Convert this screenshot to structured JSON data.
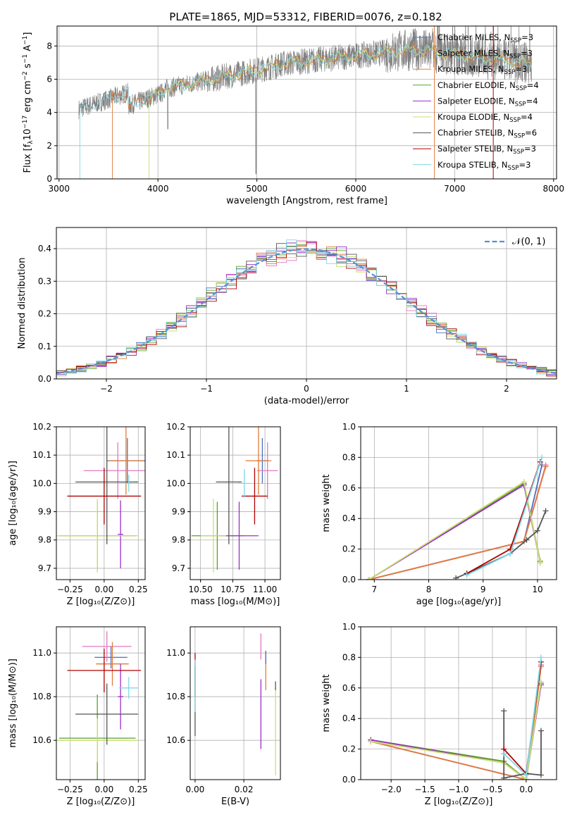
{
  "title": "PLATE=1865, MJD=53312, FIBERID=0076, z=0.182",
  "colors": {
    "Chabrier MILES": "#4f6fbf",
    "Salpeter MILES": "#e377c2",
    "Kroupa MILES": "#e07b39",
    "Chabrier ELODIE": "#5aa02c",
    "Salpeter ELODIE": "#9b30c8",
    "Kroupa ELODIE": "#c8e070",
    "Chabrier STELIB": "#555555",
    "Salpeter STELIB": "#b00000",
    "Kroupa STELIB": "#7fd8e8",
    "grid": "#b0b0b0",
    "gauss": "#5b8ed6"
  },
  "charts": {
    "spectrum": {
      "type": "line",
      "xlabel": "wavelength [Angstrom, rest frame]",
      "ylabel_main": "Flux [f",
      "ylabel_sub1": "λ",
      "ylabel_mid": "10",
      "ylabel_sup1": "−17",
      "ylabel_mid2": " erg cm",
      "ylabel_sup2": "−2",
      "ylabel_mid3": " s",
      "ylabel_sup3": "−1",
      "ylabel_mid4": " A",
      "ylabel_sup4": "−1",
      "ylabel_end": "]",
      "xlim": [
        2980,
        8030
      ],
      "ylim": [
        0,
        9.2
      ],
      "xticks": [
        "3000",
        "4000",
        "5000",
        "6000",
        "7000",
        "8000"
      ],
      "xtick_values": [
        3000,
        4000,
        5000,
        6000,
        7000,
        8000
      ],
      "yticks": [
        "0",
        "2",
        "4",
        "6",
        "8"
      ],
      "ytick_values": [
        0,
        2,
        4,
        6,
        8
      ],
      "legend": [
        {
          "name": "Chabrier MILES, N",
          "sub": "SSP",
          "suffix": "=3"
        },
        {
          "name": "Salpeter MILES, N",
          "sub": "SSP",
          "suffix": "=3"
        },
        {
          "name": "Kroupa MILES, N",
          "sub": "SSP",
          "suffix": "=3"
        },
        {
          "name": "Chabrier ELODIE, N",
          "sub": "SSP",
          "suffix": "=4"
        },
        {
          "name": "Salpeter ELODIE, N",
          "sub": "SSP",
          "suffix": "=4"
        },
        {
          "name": "Kroupa ELODIE, N",
          "sub": "SSP",
          "suffix": "=4"
        },
        {
          "name": "Chabrier STELIB, N",
          "sub": "SSP",
          "suffix": "=6"
        },
        {
          "name": "Salpeter STELIB, N",
          "sub": "SSP",
          "suffix": "=3"
        },
        {
          "name": "Kroupa STELIB, N",
          "sub": "SSP",
          "suffix": "=3"
        }
      ],
      "model_starts": [
        {
          "model": "Kroupa STELIB",
          "x": 3210
        },
        {
          "model": "Kroupa MILES",
          "x": 3540
        },
        {
          "model": "Kroupa ELODIE",
          "x": 3910
        }
      ],
      "cutoffs": [
        6795,
        7390
      ]
    },
    "residuals": {
      "type": "line",
      "xlabel": "(data-model)/error",
      "ylabel": "Normed distribution",
      "xlim": [
        -2.5,
        2.5
      ],
      "ylim": [
        0,
        0.465
      ],
      "xticks": [
        "−2",
        "−1",
        "0",
        "1",
        "2"
      ],
      "xtick_values": [
        -2,
        -1,
        0,
        1,
        2
      ],
      "yticks": [
        "0.0",
        "0.1",
        "0.2",
        "0.3",
        "0.4"
      ],
      "ytick_values": [
        0,
        0.1,
        0.2,
        0.3,
        0.4
      ],
      "legend": "𝒩(0, 1)"
    },
    "z_age": {
      "type": "scatter",
      "xlabel": "Z [log₁₀(Z/Z⊙)]",
      "ylabel": "age  [log₁₀(age/yr)]",
      "xlim": [
        -0.35,
        0.3
      ],
      "ylim": [
        9.66,
        10.2
      ],
      "xticks": [
        "−0.25",
        "0.00",
        "0.25"
      ],
      "xtick_values": [
        -0.25,
        0,
        0.25
      ],
      "yticks": [
        "9.7",
        "9.8",
        "9.9",
        "10.0",
        "10.1",
        "10.2"
      ],
      "ytick_values": [
        9.7,
        9.8,
        9.9,
        10.0,
        10.1,
        10.2
      ],
      "points": [
        {
          "model": "Chabrier MILES",
          "x": 0.17,
          "xerr": 0.15,
          "y": 10.08,
          "yerr": 0.08
        },
        {
          "model": "Salpeter MILES",
          "x": 0.1,
          "xerr": 0.25,
          "y": 10.045,
          "yerr": 0.1
        },
        {
          "model": "Kroupa MILES",
          "x": 0.16,
          "xerr": 0.13,
          "y": 10.08,
          "yerr": 0.12
        },
        {
          "model": "Chabrier ELODIE",
          "x": -0.05,
          "xerr": 0.28,
          "y": 9.815,
          "yerr": 0.12
        },
        {
          "model": "Salpeter ELODIE",
          "x": 0.12,
          "xerr": 0.02,
          "y": 9.82,
          "yerr": 0.12
        },
        {
          "model": "Kroupa ELODIE",
          "x": -0.05,
          "xerr": 0.3,
          "y": 9.815,
          "yerr": 0.13
        },
        {
          "model": "Chabrier STELIB",
          "x": 0.02,
          "xerr": 0.23,
          "y": 10.005,
          "yerr": 0.22
        },
        {
          "model": "Salpeter STELIB",
          "x": 0.0,
          "xerr": 0.27,
          "y": 9.955,
          "yerr": 0.1
        },
        {
          "model": "Kroupa STELIB",
          "x": 0.18,
          "xerr": 0.07,
          "y": 10.0,
          "yerr": 0.03
        }
      ]
    },
    "mass_age": {
      "type": "scatter",
      "xlabel": "mass [log₁₀(M/M⊙)]",
      "ylabel": "",
      "xlim": [
        10.42,
        11.12
      ],
      "ylim": [
        9.66,
        10.2
      ],
      "xticks": [
        "10.50",
        "10.75",
        "11.00"
      ],
      "xtick_values": [
        10.5,
        10.75,
        11.0
      ],
      "yticks": [
        "9.7",
        "9.8",
        "9.9",
        "10.0",
        "10.1",
        "10.2"
      ],
      "ytick_values": [
        9.7,
        9.8,
        9.9,
        10.0,
        10.1,
        10.2
      ],
      "points": [
        {
          "model": "Chabrier MILES",
          "x": 10.98,
          "xerr": 0.05,
          "y": 10.08,
          "yerr": 0.08
        },
        {
          "model": "Salpeter MILES",
          "x": 11.02,
          "xerr": 0.08,
          "y": 10.045,
          "yerr": 0.1
        },
        {
          "model": "Kroupa MILES",
          "x": 10.95,
          "xerr": 0.1,
          "y": 10.08,
          "yerr": 0.12
        },
        {
          "model": "Chabrier ELODIE",
          "x": 10.63,
          "xerr": 0.2,
          "y": 9.815,
          "yerr": 0.12
        },
        {
          "model": "Salpeter ELODIE",
          "x": 10.8,
          "xerr": 0.15,
          "y": 9.815,
          "yerr": 0.12
        },
        {
          "model": "Kroupa ELODIE",
          "x": 10.6,
          "xerr": 0.1,
          "y": 9.815,
          "yerr": 0.13
        },
        {
          "model": "Chabrier STELIB",
          "x": 10.72,
          "xerr": 0.1,
          "y": 10.005,
          "yerr": 0.22
        },
        {
          "model": "Salpeter STELIB",
          "x": 10.92,
          "xerr": 0.1,
          "y": 9.955,
          "yerr": 0.1
        },
        {
          "model": "Kroupa STELIB",
          "x": 10.84,
          "xerr": 0.05,
          "y": 10.0,
          "yerr": 0.05
        }
      ]
    },
    "age_weight": {
      "type": "line",
      "xlabel": "age  [log₁₀(age/yr)]",
      "ylabel": "mass weight",
      "xlim": [
        6.75,
        10.35
      ],
      "ylim": [
        0,
        1.0
      ],
      "xticks": [
        "7",
        "8",
        "9",
        "10"
      ],
      "xtick_values": [
        7,
        8,
        9,
        10
      ],
      "yticks": [
        "0.0",
        "0.2",
        "0.4",
        "0.6",
        "0.8",
        "1.0"
      ],
      "ytick_values": [
        0,
        0.2,
        0.4,
        0.6,
        0.8,
        1.0
      ],
      "series": [
        {
          "model": "Chabrier MILES",
          "x": [
            6.9,
            9.75,
            10.08
          ],
          "y": [
            0.0,
            0.25,
            0.75
          ]
        },
        {
          "model": "Salpeter MILES",
          "x": [
            6.9,
            9.75,
            10.15
          ],
          "y": [
            0.0,
            0.25,
            0.75
          ]
        },
        {
          "model": "Kroupa MILES",
          "x": [
            6.9,
            9.75,
            10.15
          ],
          "y": [
            0.0,
            0.25,
            0.74
          ]
        },
        {
          "model": "Chabrier ELODIE",
          "x": [
            6.9,
            9.75,
            10.05
          ],
          "y": [
            0.0,
            0.63,
            0.12
          ]
        },
        {
          "model": "Salpeter ELODIE",
          "x": [
            6.9,
            9.75,
            10.05
          ],
          "y": [
            0.0,
            0.62,
            0.11
          ]
        },
        {
          "model": "Kroupa ELODIE",
          "x": [
            6.9,
            9.75,
            10.05
          ],
          "y": [
            0.0,
            0.64,
            0.11
          ]
        },
        {
          "model": "Chabrier STELIB",
          "x": [
            8.5,
            8.7,
            9.5,
            9.8,
            10.0,
            10.15
          ],
          "y": [
            0.01,
            0.04,
            0.17,
            0.26,
            0.32,
            0.45
          ]
        },
        {
          "model": "Salpeter STELIB",
          "x": [
            8.7,
            9.5,
            10.05
          ],
          "y": [
            0.04,
            0.2,
            0.77
          ]
        },
        {
          "model": "Kroupa STELIB",
          "x": [
            8.7,
            9.5,
            10.08
          ],
          "y": [
            0.03,
            0.17,
            0.8
          ]
        }
      ]
    },
    "z_mass": {
      "type": "scatter",
      "xlabel": "Z [log₁₀(Z/Z⊙)]",
      "ylabel": "mass [log₁₀(M/M⊙)]",
      "xlim": [
        -0.35,
        0.3
      ],
      "ylim": [
        10.42,
        11.12
      ],
      "xticks": [
        "−0.25",
        "0.00",
        "0.25"
      ],
      "xtick_values": [
        -0.25,
        0,
        0.25
      ],
      "yticks": [
        "10.6",
        "10.8",
        "11.0"
      ],
      "ytick_values": [
        10.6,
        10.8,
        11.0
      ],
      "points": [
        {
          "model": "Chabrier MILES",
          "x": 0.05,
          "xerr": 0.12,
          "y": 10.98,
          "yerr": 0.05
        },
        {
          "model": "Salpeter MILES",
          "x": 0.02,
          "xerr": 0.18,
          "y": 11.03,
          "yerr": 0.07
        },
        {
          "model": "Kroupa MILES",
          "x": 0.06,
          "xerr": 0.12,
          "y": 10.95,
          "yerr": 0.1
        },
        {
          "model": "Chabrier ELODIE",
          "x": -0.05,
          "xerr": 0.28,
          "y": 10.61,
          "yerr": 0.2
        },
        {
          "model": "Salpeter ELODIE",
          "x": 0.12,
          "xerr": 0.02,
          "y": 10.8,
          "yerr": 0.15
        },
        {
          "model": "Kroupa ELODIE",
          "x": -0.05,
          "xerr": 0.3,
          "y": 10.6,
          "yerr": 0.1
        },
        {
          "model": "Chabrier STELIB",
          "x": 0.02,
          "xerr": 0.23,
          "y": 10.72,
          "yerr": 0.14
        },
        {
          "model": "Salpeter STELIB",
          "x": 0.0,
          "xerr": 0.27,
          "y": 10.92,
          "yerr": 0.1
        },
        {
          "model": "Kroupa STELIB",
          "x": 0.18,
          "xerr": 0.07,
          "y": 10.84,
          "yerr": 0.05
        }
      ]
    },
    "ebv_mass": {
      "type": "scatter",
      "xlabel": "E(B-V)",
      "ylabel": "",
      "xlim": [
        -0.002,
        0.035
      ],
      "ylim": [
        10.42,
        11.12
      ],
      "xticks": [
        "0.00",
        "0.02"
      ],
      "xtick_values": [
        0,
        0.02
      ],
      "yticks": [
        "10.6",
        "10.8",
        "11.0"
      ],
      "ytick_values": [
        10.6,
        10.8,
        11.0
      ],
      "points": [
        {
          "model": "Salpeter STELIB",
          "x": 0.0,
          "y": 10.9,
          "yerr": 0.1
        },
        {
          "model": "Chabrier STELIB",
          "x": 0.0,
          "y": 10.78,
          "yerr": 0.16
        },
        {
          "model": "Kroupa STELIB",
          "x": 0.0,
          "y": 10.85,
          "yerr": 0.12
        },
        {
          "model": "Salpeter MILES",
          "x": 0.027,
          "y": 11.03,
          "yerr": 0.06
        },
        {
          "model": "Salpeter ELODIE",
          "x": 0.027,
          "y": 10.72,
          "yerr": 0.16
        },
        {
          "model": "Kroupa MILES",
          "x": 0.029,
          "y": 10.92,
          "yerr": 0.09
        },
        {
          "model": "Chabrier MILES",
          "x": 0.029,
          "y": 10.98,
          "yerr": 0.03
        },
        {
          "model": "Kroupa ELODIE",
          "x": 0.033,
          "y": 10.64,
          "yerr": 0.2
        },
        {
          "model": "Chabrier STELIB",
          "x": 0.033,
          "y": 10.85,
          "yerr": 0.02
        }
      ]
    },
    "z_weight": {
      "type": "line",
      "xlabel": "Z [log₁₀(Z/Z⊙)]",
      "ylabel": "mass weight",
      "xlim": [
        -2.45,
        0.45
      ],
      "ylim": [
        0,
        1.0
      ],
      "xticks": [
        "−2.0",
        "−1.5",
        "−1.0",
        "−0.5",
        "0.0"
      ],
      "xtick_values": [
        -2.0,
        -1.5,
        -1.0,
        -0.5,
        0.0
      ],
      "yticks": [
        "0.0",
        "0.2",
        "0.4",
        "0.6",
        "0.8",
        "1.0"
      ],
      "ytick_values": [
        0,
        0.2,
        0.4,
        0.6,
        0.8,
        1.0
      ],
      "series": [
        {
          "model": "Chabrier MILES",
          "x": [
            -2.3,
            0.0,
            0.22
          ],
          "y": [
            0.25,
            0.0,
            0.75
          ]
        },
        {
          "model": "Salpeter MILES",
          "x": [
            -2.3,
            0.0,
            0.22
          ],
          "y": [
            0.25,
            0.0,
            0.75
          ]
        },
        {
          "model": "Kroupa MILES",
          "x": [
            -2.3,
            0.0,
            0.22
          ],
          "y": [
            0.25,
            0.0,
            0.74
          ]
        },
        {
          "model": "Chabrier ELODIE",
          "x": [
            -2.3,
            -0.33,
            0.0,
            0.22
          ],
          "y": [
            0.26,
            0.12,
            0.0,
            0.63
          ]
        },
        {
          "model": "Salpeter ELODIE",
          "x": [
            -2.3,
            -0.33,
            0.0,
            0.22
          ],
          "y": [
            0.26,
            0.11,
            0.0,
            0.62
          ]
        },
        {
          "model": "Kroupa ELODIE",
          "x": [
            -2.3,
            -0.33,
            0.0,
            0.22
          ],
          "y": [
            0.25,
            0.11,
            0.0,
            0.64
          ]
        },
        {
          "model": "Chabrier STELIB",
          "x": [
            -0.33,
            -0.33,
            -0.33,
            0.0,
            0.22,
            0.22
          ],
          "y": [
            0.45,
            0.17,
            0.01,
            0.04,
            0.03,
            0.32
          ]
        },
        {
          "model": "Salpeter STELIB",
          "x": [
            -0.33,
            0.0,
            0.22
          ],
          "y": [
            0.2,
            0.04,
            0.77
          ]
        },
        {
          "model": "Kroupa STELIB",
          "x": [
            -0.33,
            0.0,
            0.22
          ],
          "y": [
            0.17,
            0.03,
            0.8
          ]
        }
      ]
    }
  }
}
